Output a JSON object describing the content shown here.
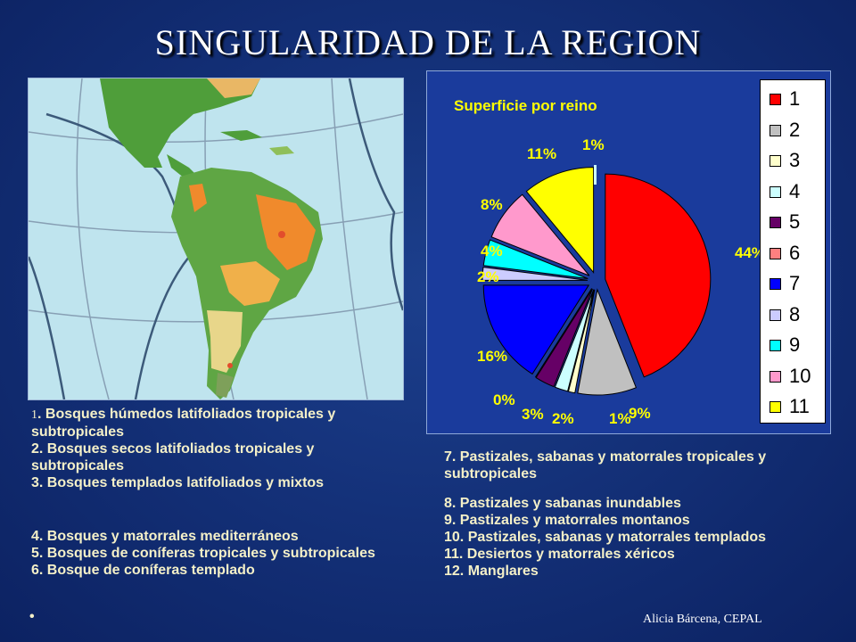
{
  "slide": {
    "title": "SINGULARIDAD DE LA REGION",
    "credit": "Alicia Bárcena, CEPAL",
    "bullet": "•"
  },
  "left_legend": {
    "item1_num": "1",
    "item1_text": ". Bosques húmedos latifoliados tropicales y subtropicales",
    "item2": "2. Bosques secos latifoliados tropicales y subtropicales",
    "item3": "3. Bosques templados  latifoliados y mixtos",
    "item4": "4. Bosques y matorrales mediterráneos",
    "item5": "5. Bosques de coníferas tropicales y subtropicales",
    "item6": "6. Bosque de coníferas templado"
  },
  "right_legend": {
    "item7": "7. Pastizales, sabanas y matorrales tropicales y subtropicales",
    "item8": "8. Pastizales y sabanas inundables",
    "item9": "9. Pastizales y matorrales montanos",
    "item10": "10. Pastizales, sabanas y matorrales templados",
    "item11": "11. Desiertos y matorrales xéricos",
    "item12": "12. Manglares"
  },
  "colors": {
    "title_text": "#ffffff",
    "legend_text": "#f4f0c8",
    "chart_background": "#1a3b9c",
    "chart_title_text": "#ffff00"
  },
  "chart_data": {
    "type": "pie",
    "title": "Superficie por reino",
    "labels": [
      "1",
      "2",
      "3",
      "4",
      "5",
      "6",
      "7",
      "8",
      "9",
      "10",
      "11"
    ],
    "values": [
      44,
      9,
      1,
      2,
      3,
      0,
      16,
      2,
      4,
      8,
      11
    ],
    "top_slice_label": "1%",
    "value_labels": [
      "44%",
      "9%",
      "1%",
      "2%",
      "3%",
      "0%",
      "16%",
      "2%",
      "4%",
      "8%",
      "11%"
    ],
    "colors": [
      "#ff0000",
      "#c0c0c0",
      "#ffffcc",
      "#ccffff",
      "#660066",
      "#ff8080",
      "#0000ff",
      "#ccccff",
      "#00ffff",
      "#ff99cc",
      "#ffff00"
    ],
    "legend_position": "right",
    "exploded": true
  }
}
